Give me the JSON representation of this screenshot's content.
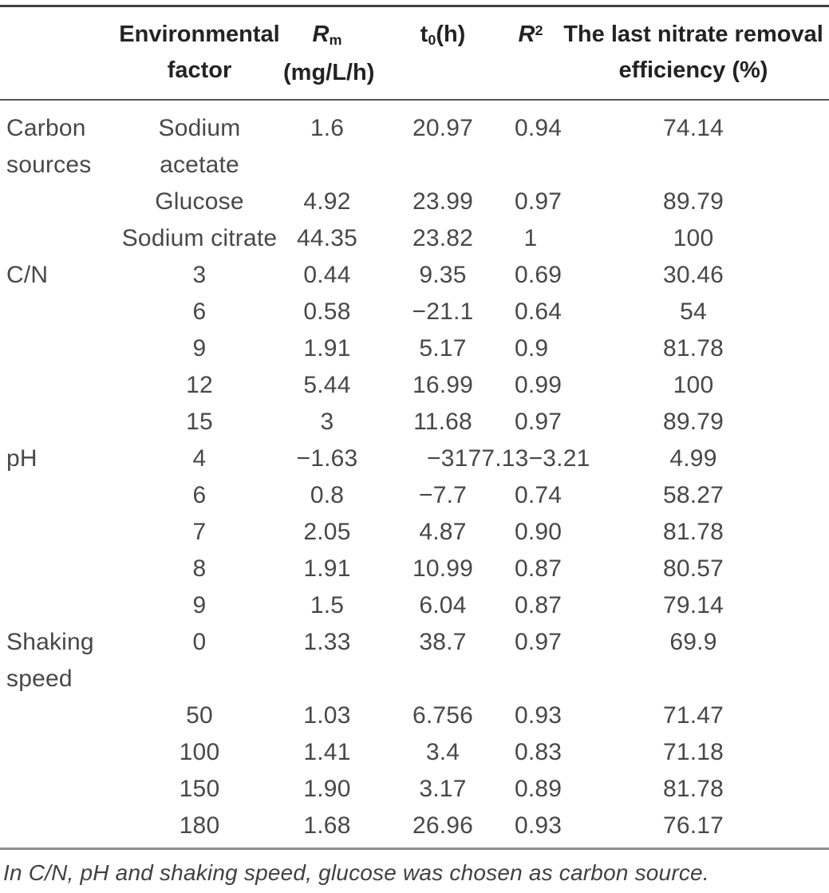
{
  "table": {
    "headers": {
      "factor_group": "",
      "environmental_factor": "Environmental factor",
      "rm": {
        "symbol": "R",
        "subscript": "m",
        "unit": "(mg/L/h)"
      },
      "t0": {
        "symbol": "t",
        "subscript": "0",
        "suffix": "(h)"
      },
      "r2": {
        "symbol": "R",
        "superscript": "2"
      },
      "efficiency": "The last nitrate removal efficiency (%)"
    },
    "rows": [
      {
        "factor": "Carbon sources",
        "level": "Sodium acetate",
        "rm": "1.6",
        "t0": "20.97",
        "r2": "0.94",
        "efficiency": "74.14"
      },
      {
        "factor": "",
        "level": "Glucose",
        "rm": "4.92",
        "t0": "23.99",
        "r2": "0.97",
        "efficiency": "89.79"
      },
      {
        "factor": "",
        "level": "Sodium citrate",
        "rm": "44.35",
        "t0": "23.82",
        "r2": "1",
        "efficiency": "100"
      },
      {
        "factor": "C/N",
        "level": "3",
        "rm": "0.44",
        "t0": "9.35",
        "r2": "0.69",
        "efficiency": "30.46"
      },
      {
        "factor": "",
        "level": "6",
        "rm": "0.58",
        "t0": "−21.1",
        "r2": "0.64",
        "efficiency": "54"
      },
      {
        "factor": "",
        "level": "9",
        "rm": "1.91",
        "t0": "5.17",
        "r2": "0.9",
        "efficiency": "81.78"
      },
      {
        "factor": "",
        "level": "12",
        "rm": "5.44",
        "t0": "16.99",
        "r2": "0.99",
        "efficiency": "100"
      },
      {
        "factor": "",
        "level": "15",
        "rm": "3",
        "t0": "11.68",
        "r2": "0.97",
        "efficiency": "89.79"
      },
      {
        "factor": "pH",
        "level": "4",
        "rm": "−1.63",
        "t0": "−3177.13",
        "r2": "−3.21",
        "efficiency": "4.99"
      },
      {
        "factor": "",
        "level": "6",
        "rm": "0.8",
        "t0": "−7.7",
        "r2": "0.74",
        "efficiency": "58.27"
      },
      {
        "factor": "",
        "level": "7",
        "rm": "2.05",
        "t0": "4.87",
        "r2": "0.90",
        "efficiency": "81.78"
      },
      {
        "factor": "",
        "level": "8",
        "rm": "1.91",
        "t0": "10.99",
        "r2": "0.87",
        "efficiency": "80.57"
      },
      {
        "factor": "",
        "level": "9",
        "rm": "1.5",
        "t0": "6.04",
        "r2": "0.87",
        "efficiency": "79.14"
      },
      {
        "factor": "Shaking speed",
        "level": "0",
        "rm": "1.33",
        "t0": "38.7",
        "r2": "0.97",
        "efficiency": "69.9"
      },
      {
        "factor": "",
        "level": "50",
        "rm": "1.03",
        "t0": "6.756",
        "r2": "0.93",
        "efficiency": "71.47"
      },
      {
        "factor": "",
        "level": "100",
        "rm": "1.41",
        "t0": "3.4",
        "r2": "0.83",
        "efficiency": "71.18"
      },
      {
        "factor": "",
        "level": "150",
        "rm": "1.90",
        "t0": "3.17",
        "r2": "0.89",
        "efficiency": "81.78"
      },
      {
        "factor": "",
        "level": "180",
        "rm": "1.68",
        "t0": "26.96",
        "r2": "0.93",
        "efficiency": "76.17"
      }
    ]
  },
  "footnote": "In C/N, pH and shaking speed, glucose was chosen as carbon source.",
  "colors": {
    "top_rule": "#414141",
    "header_rule": "#545456",
    "footnote_rule": "#8e8e8e",
    "header_text": "#232323",
    "body_text": "#48484a"
  }
}
